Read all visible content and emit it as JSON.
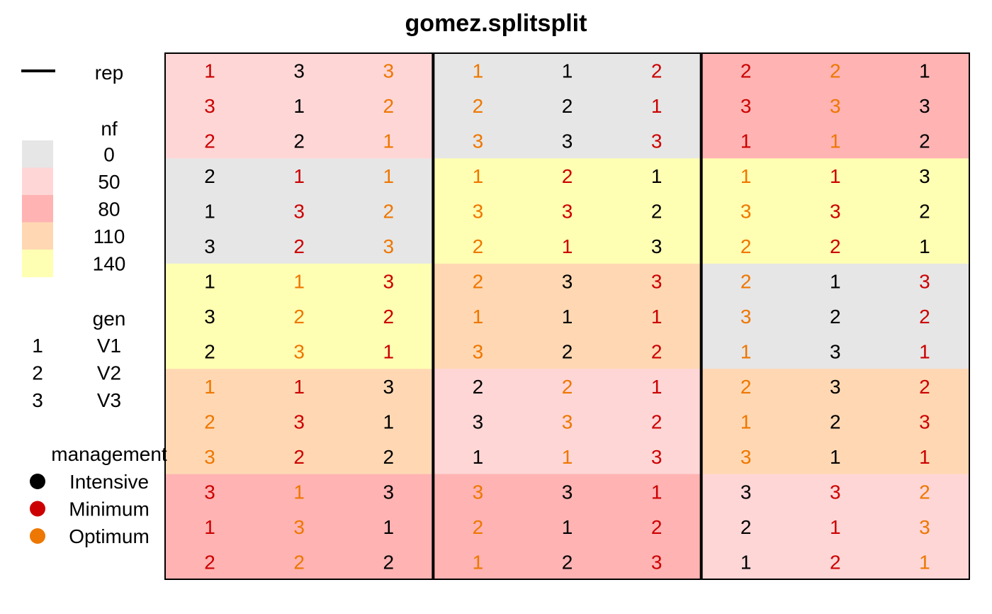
{
  "chart_data": {
    "type": "heatmap",
    "title": "gomez.splitsplit",
    "legend": {
      "rep_label": "rep",
      "nf": {
        "title": "nf",
        "levels": [
          {
            "label": "0",
            "color": "#e6e6e6"
          },
          {
            "label": "50",
            "color": "#ffd6d6"
          },
          {
            "label": "80",
            "color": "#ffb3b3"
          },
          {
            "label": "110",
            "color": "#ffd8b3"
          },
          {
            "label": "140",
            "color": "#ffffb3"
          }
        ]
      },
      "gen": {
        "title": "gen",
        "codes": [
          {
            "code": "1",
            "label": "V1"
          },
          {
            "code": "2",
            "label": "V2"
          },
          {
            "code": "3",
            "label": "V3"
          }
        ]
      },
      "management": {
        "title": "management",
        "levels": [
          {
            "label": "Intensive",
            "color": "#000000"
          },
          {
            "label": "Minimum",
            "color": "#cc0000"
          },
          {
            "label": "Optimum",
            "color": "#ee7700"
          }
        ]
      }
    },
    "reps": 3,
    "cols_per_rep": 3,
    "nf_blocks": [
      [
        "50",
        "0",
        "80"
      ],
      [
        "0",
        "140",
        "140"
      ],
      [
        "140",
        "110",
        "0"
      ],
      [
        "110",
        "50",
        "110"
      ],
      [
        "80",
        "80",
        "50"
      ]
    ],
    "gen_values": [
      [
        "1",
        "3",
        "3",
        "1",
        "1",
        "2",
        "2",
        "2",
        "1"
      ],
      [
        "3",
        "1",
        "2",
        "2",
        "2",
        "1",
        "3",
        "3",
        "3"
      ],
      [
        "2",
        "2",
        "1",
        "3",
        "3",
        "3",
        "1",
        "1",
        "2"
      ],
      [
        "2",
        "1",
        "1",
        "1",
        "2",
        "1",
        "1",
        "1",
        "3"
      ],
      [
        "1",
        "3",
        "2",
        "3",
        "3",
        "2",
        "3",
        "3",
        "2"
      ],
      [
        "3",
        "2",
        "3",
        "2",
        "1",
        "3",
        "2",
        "2",
        "1"
      ],
      [
        "1",
        "1",
        "3",
        "2",
        "3",
        "3",
        "2",
        "1",
        "3"
      ],
      [
        "3",
        "2",
        "2",
        "1",
        "1",
        "1",
        "3",
        "2",
        "2"
      ],
      [
        "2",
        "3",
        "1",
        "3",
        "2",
        "2",
        "1",
        "3",
        "1"
      ],
      [
        "1",
        "1",
        "3",
        "2",
        "2",
        "1",
        "2",
        "3",
        "2"
      ],
      [
        "2",
        "3",
        "1",
        "3",
        "3",
        "2",
        "1",
        "2",
        "3"
      ],
      [
        "3",
        "2",
        "2",
        "1",
        "1",
        "3",
        "3",
        "1",
        "1"
      ],
      [
        "3",
        "1",
        "3",
        "3",
        "3",
        "1",
        "3",
        "3",
        "2"
      ],
      [
        "1",
        "3",
        "1",
        "2",
        "1",
        "2",
        "2",
        "1",
        "3"
      ],
      [
        "2",
        "2",
        "2",
        "1",
        "2",
        "3",
        "1",
        "2",
        "1"
      ]
    ],
    "management": [
      [
        "Minimum",
        "Intensive",
        "Optimum",
        "Optimum",
        "Intensive",
        "Minimum",
        "Minimum",
        "Optimum",
        "Intensive"
      ],
      [
        "Minimum",
        "Intensive",
        "Optimum",
        "Optimum",
        "Intensive",
        "Minimum",
        "Minimum",
        "Optimum",
        "Intensive"
      ],
      [
        "Minimum",
        "Intensive",
        "Optimum",
        "Optimum",
        "Intensive",
        "Minimum",
        "Minimum",
        "Optimum",
        "Intensive"
      ],
      [
        "Intensive",
        "Minimum",
        "Optimum",
        "Optimum",
        "Minimum",
        "Intensive",
        "Optimum",
        "Minimum",
        "Intensive"
      ],
      [
        "Intensive",
        "Minimum",
        "Optimum",
        "Optimum",
        "Minimum",
        "Intensive",
        "Optimum",
        "Minimum",
        "Intensive"
      ],
      [
        "Intensive",
        "Minimum",
        "Optimum",
        "Optimum",
        "Minimum",
        "Intensive",
        "Optimum",
        "Minimum",
        "Intensive"
      ],
      [
        "Intensive",
        "Optimum",
        "Minimum",
        "Optimum",
        "Intensive",
        "Minimum",
        "Optimum",
        "Intensive",
        "Minimum"
      ],
      [
        "Intensive",
        "Optimum",
        "Minimum",
        "Optimum",
        "Intensive",
        "Minimum",
        "Optimum",
        "Intensive",
        "Minimum"
      ],
      [
        "Intensive",
        "Optimum",
        "Minimum",
        "Optimum",
        "Intensive",
        "Minimum",
        "Optimum",
        "Intensive",
        "Minimum"
      ],
      [
        "Optimum",
        "Minimum",
        "Intensive",
        "Intensive",
        "Optimum",
        "Minimum",
        "Optimum",
        "Intensive",
        "Minimum"
      ],
      [
        "Optimum",
        "Minimum",
        "Intensive",
        "Intensive",
        "Optimum",
        "Minimum",
        "Optimum",
        "Intensive",
        "Minimum"
      ],
      [
        "Optimum",
        "Minimum",
        "Intensive",
        "Intensive",
        "Optimum",
        "Minimum",
        "Optimum",
        "Intensive",
        "Minimum"
      ],
      [
        "Minimum",
        "Optimum",
        "Intensive",
        "Optimum",
        "Intensive",
        "Minimum",
        "Intensive",
        "Minimum",
        "Optimum"
      ],
      [
        "Minimum",
        "Optimum",
        "Intensive",
        "Optimum",
        "Intensive",
        "Minimum",
        "Intensive",
        "Minimum",
        "Optimum"
      ],
      [
        "Minimum",
        "Optimum",
        "Intensive",
        "Optimum",
        "Intensive",
        "Minimum",
        "Intensive",
        "Minimum",
        "Optimum"
      ]
    ]
  }
}
